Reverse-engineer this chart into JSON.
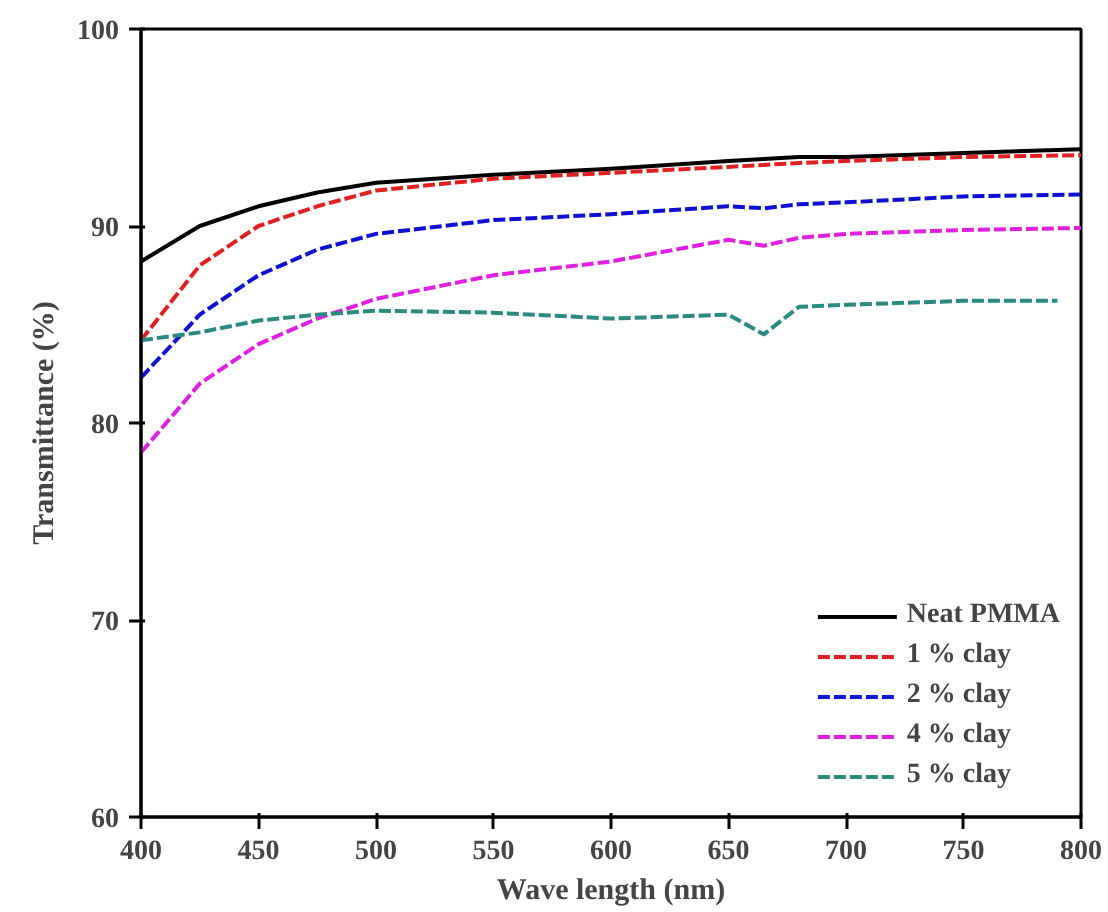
{
  "chart_data": {
    "type": "line",
    "xlabel": "Wave length (nm)",
    "ylabel": "Transmittance (%)",
    "x": [
      400,
      425,
      450,
      475,
      500,
      550,
      600,
      650,
      665,
      680,
      700,
      750,
      800
    ],
    "series": [
      {
        "name": "Neat PMMA",
        "color": "#000000",
        "line_style": "solid",
        "values": [
          88.2,
          90,
          91,
          91.7,
          92.2,
          92.6,
          92.9,
          93.3,
          93.4,
          93.5,
          93.5,
          93.7,
          93.9
        ]
      },
      {
        "name": "1 % clay",
        "color": "#e02020",
        "line_style": "dashed",
        "values": [
          84.2,
          88,
          90,
          91,
          91.8,
          92.4,
          92.7,
          93.0,
          93.1,
          93.2,
          93.3,
          93.5,
          93.6
        ]
      },
      {
        "name": "2 % clay",
        "color": "#1010d0",
        "line_style": "dashed",
        "values": [
          82.3,
          85.5,
          87.5,
          88.8,
          89.6,
          90.3,
          90.6,
          91.0,
          90.9,
          91.1,
          91.2,
          91.5,
          91.6
        ]
      },
      {
        "name": "4 % clay",
        "color": "#e020e0",
        "line_style": "dashed",
        "values": [
          78.5,
          82,
          84,
          85.3,
          86.3,
          87.5,
          88.2,
          89.3,
          89.0,
          89.4,
          89.6,
          89.8,
          89.9
        ]
      },
      {
        "name": "5 % clay",
        "color": "#2a8a80",
        "line_style": "dashed",
        "x": [
          400,
          425,
          450,
          475,
          500,
          550,
          600,
          650,
          665,
          680,
          700,
          750,
          790
        ],
        "values": [
          84.2,
          84.6,
          85.2,
          85.5,
          85.7,
          85.6,
          85.3,
          85.5,
          84.5,
          85.9,
          86.0,
          86.2,
          86.2
        ]
      }
    ],
    "xlim": [
      400,
      800
    ],
    "ylim": [
      60,
      100
    ],
    "xticks": [
      400,
      450,
      500,
      550,
      600,
      650,
      700,
      750,
      800
    ],
    "yticks": [
      60,
      70,
      80,
      90,
      100
    ],
    "grid": false,
    "legend": "bottom right",
    "marker": "none"
  }
}
